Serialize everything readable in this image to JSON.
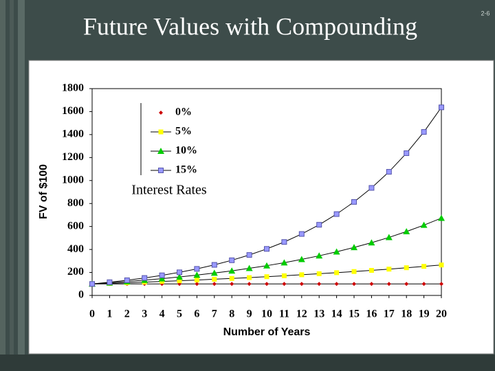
{
  "page_number": "2-6",
  "chart_data": {
    "type": "line",
    "title": "Future Values with Compounding",
    "x_label": "Number of Years",
    "y_label": "FV of $100",
    "annotation": "Interest Rates",
    "x": [
      0,
      1,
      2,
      3,
      4,
      5,
      6,
      7,
      8,
      9,
      10,
      11,
      12,
      13,
      14,
      15,
      16,
      17,
      18,
      19,
      20
    ],
    "xlim": [
      0,
      20
    ],
    "xticks": [
      0,
      1,
      2,
      3,
      4,
      5,
      6,
      7,
      8,
      9,
      10,
      11,
      12,
      13,
      14,
      15,
      16,
      17,
      18,
      19,
      20
    ],
    "ylim": [
      0,
      1800
    ],
    "yticks": [
      0,
      200,
      400,
      600,
      800,
      1000,
      1200,
      1400,
      1600,
      1800
    ],
    "line_color": "#000000",
    "legend": "upper left",
    "series": [
      {
        "name": "0%",
        "color": "#cc0000",
        "marker": "diamond",
        "values": [
          100,
          100,
          100,
          100,
          100,
          100,
          100,
          100,
          100,
          100,
          100,
          100,
          100,
          100,
          100,
          100,
          100,
          100,
          100,
          100,
          100
        ]
      },
      {
        "name": "5%",
        "color": "#ffff00",
        "marker": "square",
        "values": [
          100,
          105,
          110,
          116,
          122,
          128,
          134,
          141,
          148,
          155,
          163,
          171,
          180,
          189,
          198,
          208,
          218,
          229,
          241,
          253,
          265
        ]
      },
      {
        "name": "10%",
        "color": "#00cc00",
        "marker": "triangle",
        "values": [
          100,
          110,
          121,
          133,
          146,
          161,
          177,
          195,
          214,
          236,
          259,
          285,
          314,
          345,
          380,
          418,
          459,
          505,
          556,
          612,
          673
        ]
      },
      {
        "name": "15%",
        "color": "#9999ff",
        "marker": "square",
        "values": [
          100,
          115,
          132,
          152,
          175,
          201,
          231,
          266,
          306,
          352,
          405,
          465,
          535,
          615,
          708,
          814,
          936,
          1076,
          1238,
          1423,
          1637
        ]
      }
    ]
  }
}
